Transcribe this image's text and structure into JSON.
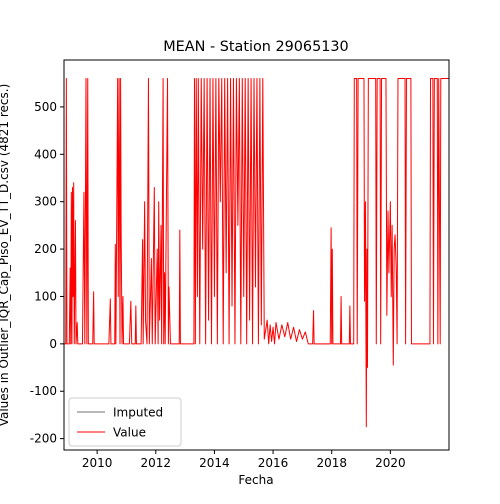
{
  "chart_data": {
    "type": "line",
    "title": "MEAN - Station 29065130",
    "x_label": "Fecha",
    "y_label": "Values in Outlier_IQR_Cap_Piso_EV_TT_D.csv (4821 recs.)",
    "xlim": [
      2008.87,
      2022.0
    ],
    "xticks": [
      2010,
      2012,
      2014,
      2016,
      2018,
      2020
    ],
    "ylim": [
      -224,
      599
    ],
    "yticks": [
      -200,
      -100,
      0,
      100,
      200,
      300,
      400,
      500
    ],
    "legend": "lower left",
    "grid": false,
    "series": [
      {
        "name": "Imputed",
        "color": "#444444",
        "x": [
          2017.4,
          2017.95
        ],
        "values": [
          0,
          0
        ]
      },
      {
        "name": "Value",
        "color": "#ff0000",
        "x": [
          2008.87,
          2008.93,
          2008.95,
          2008.97,
          2009.05,
          2009.08,
          2009.1,
          2009.12,
          2009.14,
          2009.16,
          2009.18,
          2009.2,
          2009.22,
          2009.26,
          2009.28,
          2009.32,
          2009.34,
          2009.5,
          2009.55,
          2009.58,
          2009.62,
          2009.65,
          2009.68,
          2009.7,
          2009.85,
          2009.88,
          2009.9,
          2010.4,
          2010.45,
          2010.47,
          2010.6,
          2010.62,
          2010.64,
          2010.7,
          2010.72,
          2010.75,
          2010.78,
          2010.8,
          2010.82,
          2010.85,
          2010.88,
          2010.9,
          2011.1,
          2011.15,
          2011.18,
          2011.3,
          2011.32,
          2011.34,
          2011.5,
          2011.55,
          2011.57,
          2011.62,
          2011.65,
          2011.7,
          2011.75,
          2011.78,
          2011.85,
          2011.88,
          2011.95,
          2011.98,
          2012.05,
          2012.08,
          2012.1,
          2012.13,
          2012.18,
          2012.2,
          2012.25,
          2012.27,
          2012.3,
          2012.32,
          2012.4,
          2012.43,
          2012.45,
          2012.5,
          2012.8,
          2012.82,
          2012.84,
          2013.3,
          2013.32,
          2013.35,
          2013.38,
          2013.42,
          2013.45,
          2013.5,
          2013.55,
          2013.6,
          2013.65,
          2013.7,
          2013.75,
          2013.8,
          2013.85,
          2013.9,
          2013.95,
          2014.0,
          2014.05,
          2014.1,
          2014.15,
          2014.2,
          2014.25,
          2014.3,
          2014.35,
          2014.4,
          2014.45,
          2014.5,
          2014.55,
          2014.6,
          2014.65,
          2014.7,
          2014.75,
          2014.8,
          2014.85,
          2014.9,
          2014.95,
          2015.0,
          2015.05,
          2015.1,
          2015.15,
          2015.2,
          2015.25,
          2015.3,
          2015.35,
          2015.4,
          2015.45,
          2015.5,
          2015.55,
          2015.6,
          2015.65,
          2015.7,
          2015.8,
          2015.85,
          2015.9,
          2015.95,
          2016.0,
          2016.05,
          2016.1,
          2016.2,
          2016.3,
          2016.4,
          2016.5,
          2016.6,
          2016.7,
          2016.8,
          2016.9,
          2017.0,
          2017.1,
          2017.2,
          2017.35,
          2017.38,
          2017.4,
          2017.95,
          2017.98,
          2018.0,
          2018.02,
          2018.04,
          2018.3,
          2018.32,
          2018.34,
          2018.6,
          2018.62,
          2018.64,
          2018.75,
          2018.77,
          2018.85,
          2018.87,
          2018.9,
          2019.1,
          2019.12,
          2019.15,
          2019.18,
          2019.2,
          2019.22,
          2019.25,
          2019.5,
          2019.52,
          2019.55,
          2019.65,
          2019.67,
          2019.7,
          2019.85,
          2019.88,
          2019.92,
          2019.95,
          2020.0,
          2020.03,
          2020.06,
          2020.1,
          2020.13,
          2020.16,
          2020.2,
          2020.23,
          2020.26,
          2020.5,
          2020.52,
          2020.55,
          2020.7,
          2020.72,
          2021.35,
          2021.37,
          2021.45,
          2021.47,
          2021.5,
          2021.6,
          2021.62,
          2021.65,
          2021.7,
          2021.72,
          2022.0
        ],
        "values": [
          0,
          0,
          560,
          0,
          0,
          160,
          0,
          320,
          0,
          330,
          100,
          340,
          0,
          260,
          0,
          45,
          0,
          0,
          320,
          0,
          560,
          0,
          560,
          0,
          0,
          110,
          0,
          0,
          95,
          0,
          0,
          210,
          0,
          560,
          100,
          560,
          0,
          560,
          220,
          0,
          100,
          0,
          0,
          90,
          0,
          0,
          80,
          0,
          0,
          220,
          0,
          300,
          50,
          0,
          560,
          0,
          180,
          0,
          330,
          0,
          200,
          0,
          300,
          50,
          250,
          0,
          560,
          0,
          150,
          0,
          560,
          0,
          120,
          0,
          0,
          240,
          0,
          0,
          560,
          0,
          560,
          100,
          560,
          0,
          560,
          200,
          560,
          0,
          560,
          50,
          560,
          0,
          560,
          100,
          560,
          0,
          560,
          300,
          560,
          0,
          560,
          150,
          560,
          0,
          560,
          80,
          560,
          0,
          560,
          250,
          560,
          0,
          560,
          100,
          560,
          0,
          560,
          50,
          560,
          0,
          560,
          120,
          560,
          0,
          560,
          40,
          560,
          10,
          50,
          0,
          40,
          5,
          35,
          0,
          45,
          10,
          40,
          15,
          45,
          10,
          35,
          5,
          30,
          10,
          25,
          0,
          0,
          70,
          0,
          0,
          245,
          0,
          200,
          0,
          0,
          100,
          0,
          0,
          80,
          0,
          0,
          560,
          560,
          0,
          560,
          560,
          90,
          300,
          -175,
          200,
          -50,
          560,
          560,
          0,
          560,
          560,
          0,
          560,
          560,
          60,
          280,
          150,
          300,
          100,
          250,
          -45,
          200,
          230,
          160,
          0,
          560,
          560,
          0,
          560,
          560,
          0,
          0,
          560,
          560,
          0,
          560,
          560,
          0,
          560,
          0,
          560,
          560
        ]
      }
    ]
  }
}
